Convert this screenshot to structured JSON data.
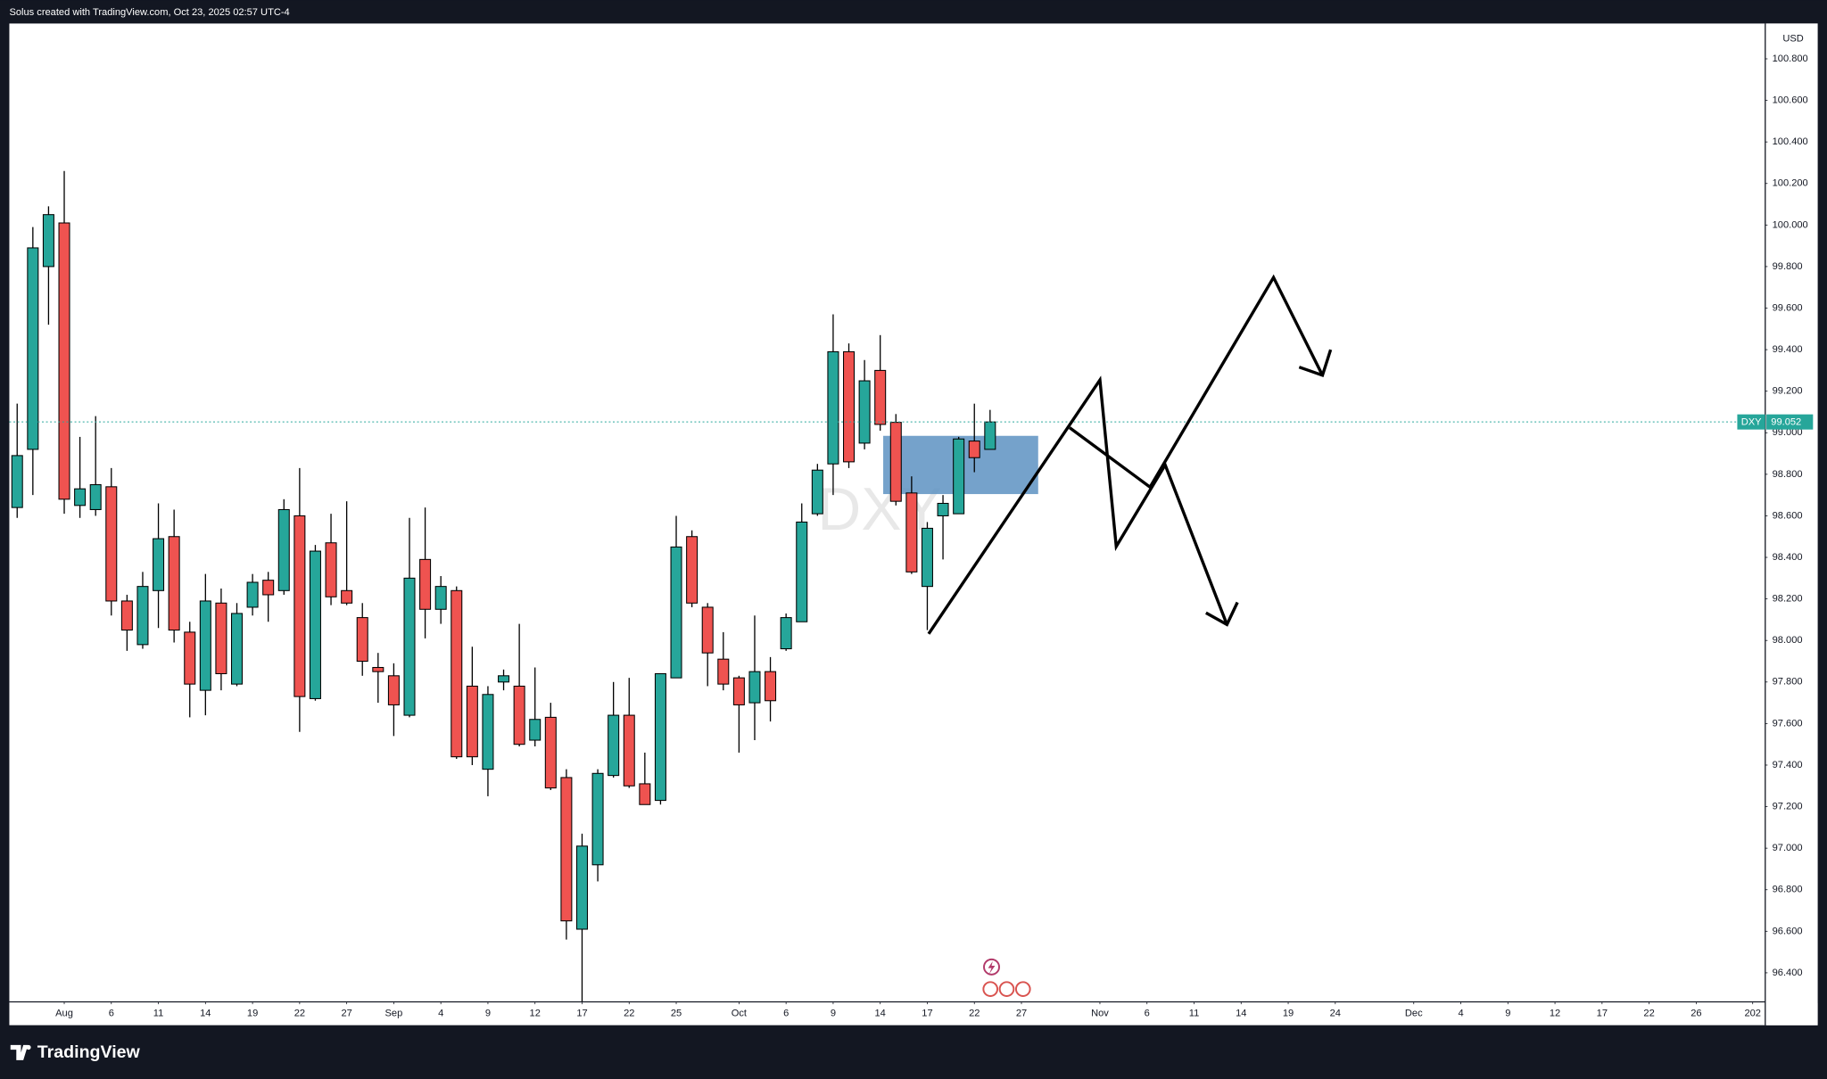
{
  "header": {
    "title": "Solus created with TradingView.com, Oct 23, 2025 02:57 UTC-4"
  },
  "chart_data": {
    "type": "candlestick",
    "symbol": "DXY",
    "currency": "USD",
    "up_color": "#26a69a",
    "down_color": "#ef5350",
    "grid": false,
    "open": [
      98.64,
      98.92,
      99.8,
      100.01,
      98.65,
      98.63,
      98.74,
      98.19,
      97.98,
      98.24,
      98.5,
      98.04,
      97.76,
      98.18,
      97.79,
      98.16,
      98.29,
      98.24,
      98.6,
      97.72,
      98.47,
      98.24,
      98.11,
      97.87,
      97.83,
      97.64,
      98.39,
      98.15,
      98.24,
      97.78,
      97.38,
      97.8,
      97.78,
      97.52,
      97.63,
      97.34,
      96.61,
      96.92,
      97.35,
      97.64,
      97.31,
      97.23,
      97.82,
      98.5,
      98.16,
      97.91,
      97.82,
      97.7,
      97.85,
      97.96,
      98.09,
      98.61,
      98.85,
      99.39,
      98.95,
      99.3,
      99.05,
      98.71,
      98.26,
      98.6,
      98.61,
      98.96,
      98.92
    ],
    "high": [
      99.14,
      99.99,
      100.09,
      100.26,
      98.98,
      99.08,
      98.83,
      98.22,
      98.33,
      98.66,
      98.63,
      98.09,
      98.32,
      98.25,
      98.18,
      98.32,
      98.33,
      98.68,
      98.83,
      98.46,
      98.61,
      98.67,
      98.18,
      97.94,
      97.89,
      98.59,
      98.64,
      98.31,
      98.26,
      97.97,
      97.78,
      97.86,
      98.08,
      97.87,
      97.7,
      97.38,
      97.07,
      97.38,
      97.8,
      97.82,
      97.46,
      97.84,
      98.6,
      98.53,
      98.18,
      98.04,
      97.83,
      98.12,
      97.92,
      98.13,
      98.66,
      98.85,
      99.57,
      99.43,
      99.35,
      99.47,
      99.09,
      98.79,
      98.57,
      98.7,
      98.98,
      99.14,
      99.11
    ],
    "low": [
      98.59,
      98.7,
      99.52,
      98.61,
      98.59,
      98.6,
      98.12,
      97.95,
      97.96,
      98.06,
      97.99,
      97.63,
      97.64,
      97.76,
      97.78,
      98.12,
      98.09,
      98.22,
      97.56,
      97.71,
      98.17,
      98.17,
      97.83,
      97.7,
      97.54,
      97.63,
      98.01,
      98.08,
      97.43,
      97.4,
      97.25,
      97.76,
      97.49,
      97.49,
      97.28,
      96.56,
      96.26,
      96.84,
      97.34,
      97.29,
      97.21,
      97.21,
      97.82,
      98.16,
      97.78,
      97.76,
      97.46,
      97.52,
      97.61,
      97.95,
      98.09,
      98.6,
      98.7,
      98.83,
      98.92,
      99.01,
      98.65,
      98.32,
      98.05,
      98.39,
      98.61,
      98.81,
      98.92
    ],
    "close": [
      98.89,
      99.89,
      100.05,
      98.68,
      98.73,
      98.75,
      98.19,
      98.05,
      98.26,
      98.49,
      98.05,
      97.79,
      98.19,
      97.84,
      98.13,
      98.28,
      98.22,
      98.63,
      97.73,
      98.43,
      98.21,
      98.18,
      97.9,
      97.85,
      97.69,
      98.3,
      98.15,
      98.26,
      97.44,
      97.44,
      97.74,
      97.83,
      97.5,
      97.62,
      97.29,
      96.65,
      97.01,
      97.36,
      97.64,
      97.3,
      97.21,
      97.84,
      98.45,
      98.18,
      97.94,
      97.79,
      97.69,
      97.85,
      97.71,
      98.11,
      98.57,
      98.82,
      99.39,
      98.86,
      99.25,
      99.04,
      98.67,
      98.33,
      98.54,
      98.66,
      98.97,
      98.88,
      99.052
    ],
    "last_price": 99.052,
    "xlim": [
      -0.5,
      111.4
    ],
    "xticks": [
      {
        "value": 3,
        "label": "Aug"
      },
      {
        "value": 6,
        "label": "6"
      },
      {
        "value": 9,
        "label": "11"
      },
      {
        "value": 12,
        "label": "14"
      },
      {
        "value": 15,
        "label": "19"
      },
      {
        "value": 18,
        "label": "22"
      },
      {
        "value": 21,
        "label": "27"
      },
      {
        "value": 24,
        "label": "Sep"
      },
      {
        "value": 27,
        "label": "4"
      },
      {
        "value": 30,
        "label": "9"
      },
      {
        "value": 33,
        "label": "12"
      },
      {
        "value": 36,
        "label": "17"
      },
      {
        "value": 39,
        "label": "22"
      },
      {
        "value": 42,
        "label": "25"
      },
      {
        "value": 46,
        "label": "Oct"
      },
      {
        "value": 49,
        "label": "6"
      },
      {
        "value": 52,
        "label": "9"
      },
      {
        "value": 55,
        "label": "14"
      },
      {
        "value": 58,
        "label": "17"
      },
      {
        "value": 61,
        "label": "22"
      },
      {
        "value": 64,
        "label": "27"
      },
      {
        "value": 69,
        "label": "Nov"
      },
      {
        "value": 72,
        "label": "6"
      },
      {
        "value": 75,
        "label": "11"
      },
      {
        "value": 78,
        "label": "14"
      },
      {
        "value": 81,
        "label": "19"
      },
      {
        "value": 84,
        "label": "24"
      },
      {
        "value": 89,
        "label": "Dec"
      },
      {
        "value": 92,
        "label": "4"
      },
      {
        "value": 95,
        "label": "9"
      },
      {
        "value": 98,
        "label": "12"
      },
      {
        "value": 101,
        "label": "17"
      },
      {
        "value": 104,
        "label": "22"
      },
      {
        "value": 107,
        "label": "26"
      },
      {
        "value": 110.6,
        "label": "202"
      }
    ],
    "ylim": [
      96.26,
      100.97
    ],
    "yticks": [
      {
        "value": 96.4,
        "label": "96.400"
      },
      {
        "value": 96.6,
        "label": "96.600"
      },
      {
        "value": 96.8,
        "label": "96.800"
      },
      {
        "value": 97.0,
        "label": "97.000"
      },
      {
        "value": 97.2,
        "label": "97.200"
      },
      {
        "value": 97.4,
        "label": "97.400"
      },
      {
        "value": 97.6,
        "label": "97.600"
      },
      {
        "value": 97.8,
        "label": "97.800"
      },
      {
        "value": 98.0,
        "label": "98.000"
      },
      {
        "value": 98.2,
        "label": "98.200"
      },
      {
        "value": 98.4,
        "label": "98.400"
      },
      {
        "value": 98.6,
        "label": "98.600"
      },
      {
        "value": 98.8,
        "label": "98.800"
      },
      {
        "value": 99.0,
        "label": "99.000"
      },
      {
        "value": 99.2,
        "label": "99.200"
      },
      {
        "value": 99.4,
        "label": "99.400"
      },
      {
        "value": 99.6,
        "label": "99.600"
      },
      {
        "value": 99.8,
        "label": "99.800"
      },
      {
        "value": 100.0,
        "label": "100.000"
      },
      {
        "value": 100.2,
        "label": "100.200"
      },
      {
        "value": 100.4,
        "label": "100.400"
      },
      {
        "value": 100.6,
        "label": "100.600"
      },
      {
        "value": 100.8,
        "label": "100.800"
      }
    ]
  },
  "footer": {
    "brand": "TradingView"
  }
}
